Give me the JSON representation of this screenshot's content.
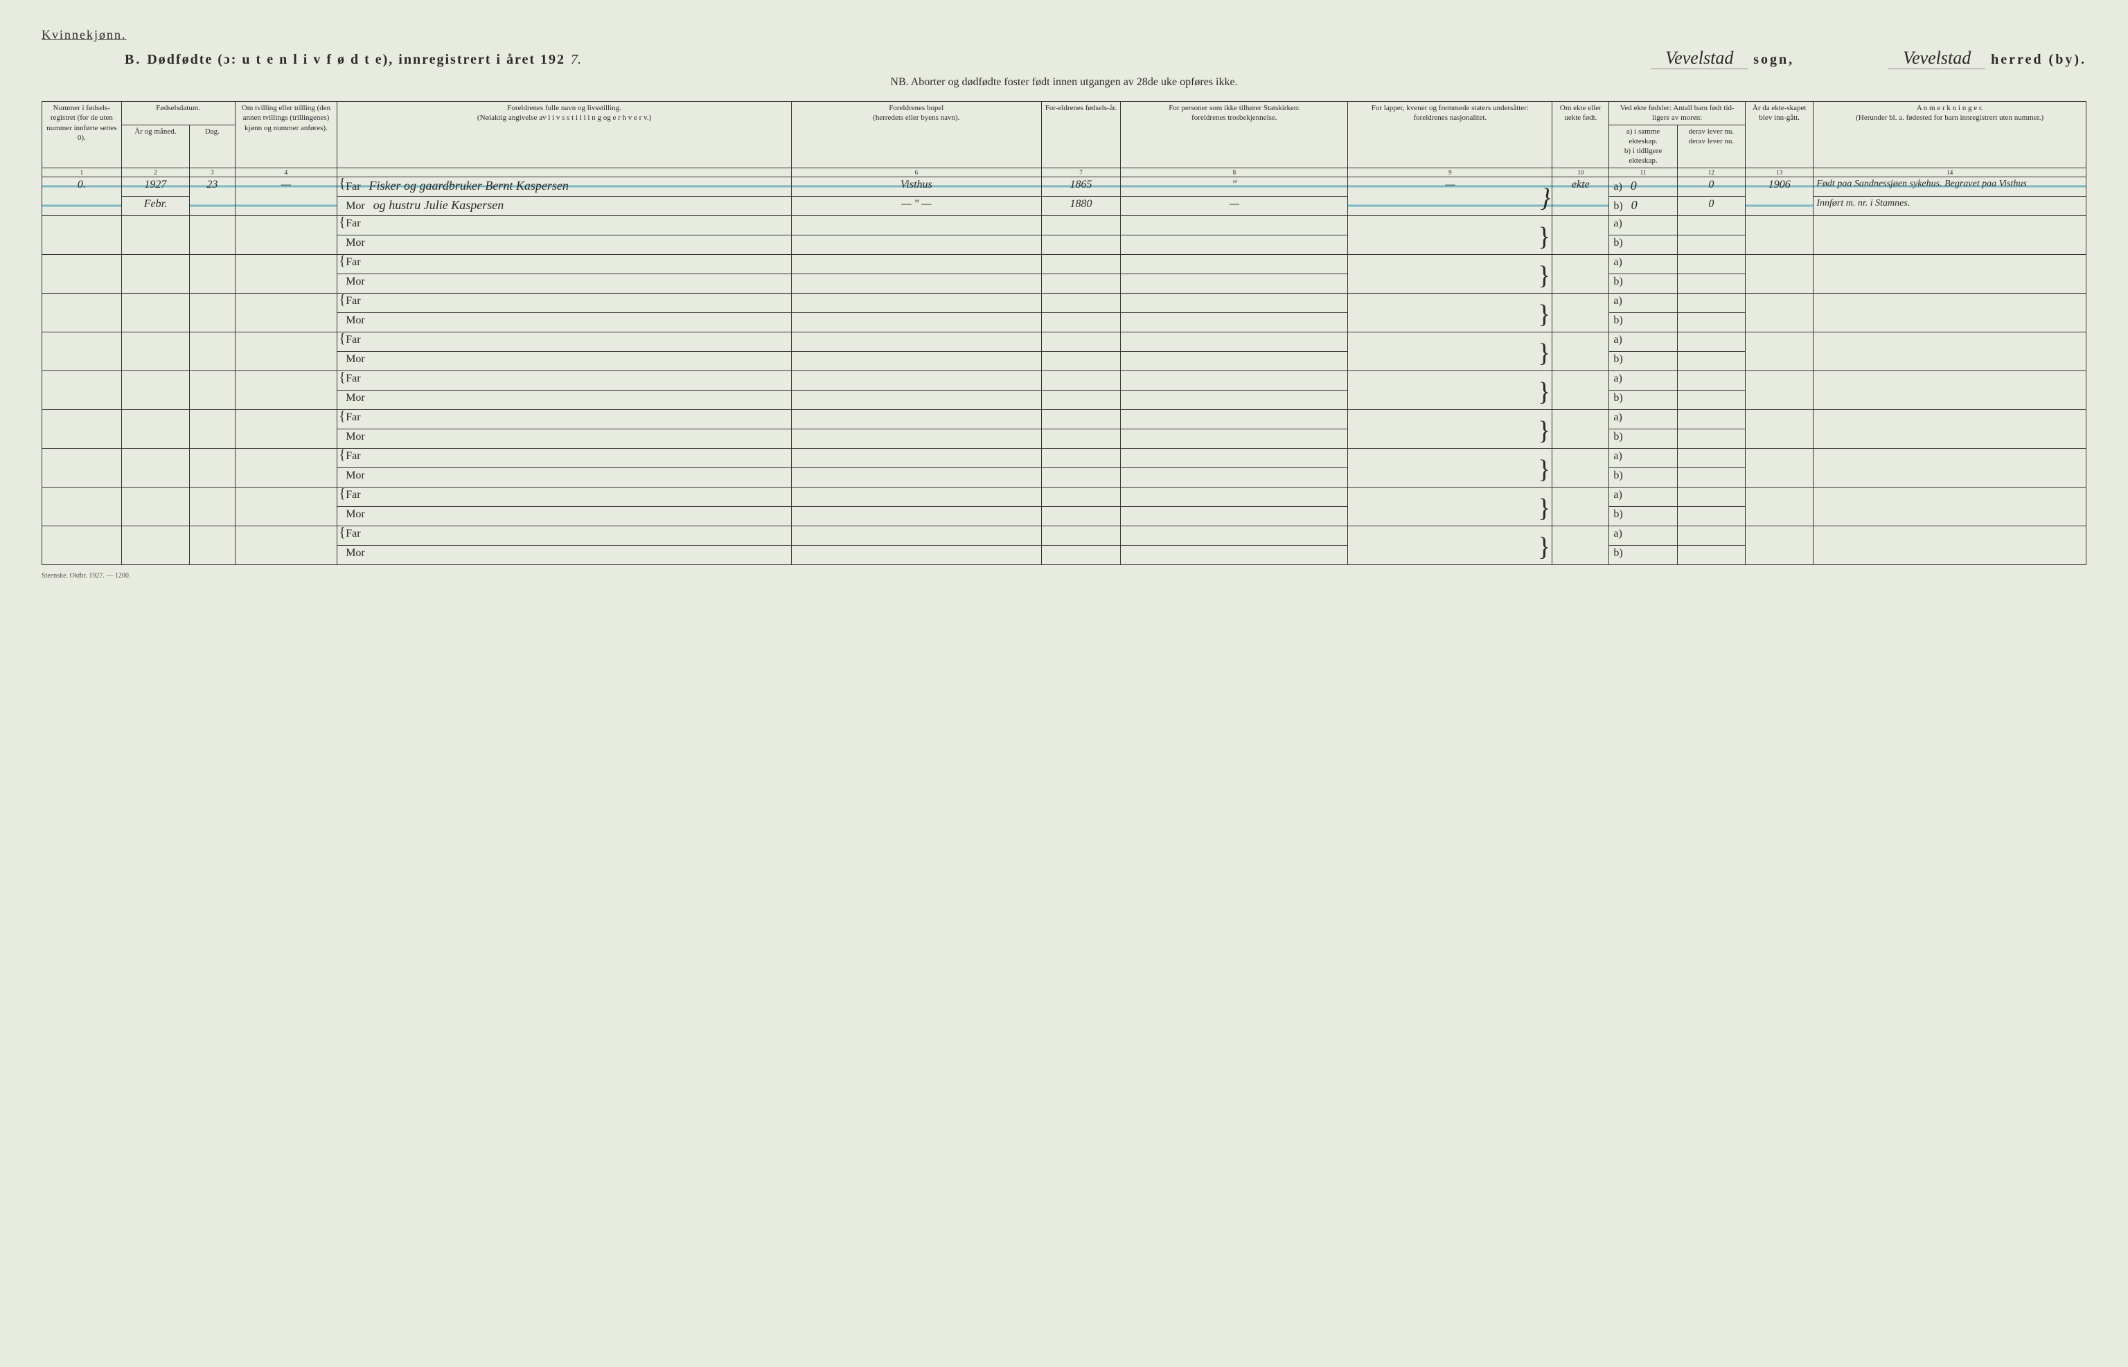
{
  "gender_label": "Kvinnekjønn.",
  "header": {
    "prefix": "B.",
    "title_spaced": "Dødfødte (ɔ: u t e n  l i v f ø d t e), innregistrert i året 192",
    "year_suffix": "7.",
    "sogn_value": "Vevelstad",
    "sogn_label": "sogn,",
    "herred_value": "Vevelstad",
    "herred_label": "herred (by)."
  },
  "nb_line": "NB.  Aborter og dødfødte foster født innen utgangen av 28de uke opføres ikke.",
  "columns": {
    "c1": "Nummer i fødsels-registret (for de uten nummer innførte settes 0).",
    "c2_top": "Fødselsdatum.",
    "c2a": "År og måned.",
    "c2b": "Dag.",
    "c4": "Om tvilling eller trilling (den annen tvillings (trillingenes) kjønn og nummer anføres).",
    "c5_top": "Foreldrenes fulle navn og livsstilling.",
    "c5_sub": "(Nøiaktig angivelse av l i v s s t i l l i n g og e r h v e r v.)",
    "c6_top": "Foreldrenes bopel",
    "c6_sub": "(herredets eller byens navn).",
    "c7": "For-eldrenes fødsels-år.",
    "c8_top": "For personer som ikke tilhører Statskirken:",
    "c8_sub": "foreldrenes trosbekjennelse.",
    "c9_top": "For lapper, kvener og fremmede staters undersåtter:",
    "c9_sub": "foreldrenes nasjonalitet.",
    "c10": "Om ekte eller uekte født.",
    "c11_top": "Ved ekte fødsler: Antall barn født tid-ligere av moren:",
    "c11a": "a) i samme ekteskap.",
    "c11b": "b) i tidligere ekteskap.",
    "c12a": "derav lever nu.",
    "c12b": "derav lever nu.",
    "c13": "År da ekte-skapet blev inn-gått.",
    "c14_top": "A n m e r k n i n g e r.",
    "c14_sub": "(Herunder bl. a. fødested for barn innregistrert uten nummer.)"
  },
  "colnums": [
    "1",
    "2",
    "3",
    "4",
    "5",
    "6",
    "7",
    "8",
    "9",
    "10",
    "11",
    "12",
    "13",
    "14"
  ],
  "far_label": "Far",
  "mor_label": "Mor",
  "ab_a": "a)",
  "ab_b": "b)",
  "entries": [
    {
      "num": "0.",
      "year_month_top": "1927",
      "year_month_bot": "Febr.",
      "day": "23",
      "twin": "—",
      "far_name": "Fisker og gaardbruker Bernt Kaspersen",
      "mor_name": "og hustru Julie Kaspersen",
      "bopel_far": "Visthus",
      "bopel_mor": "— \" —",
      "far_year": "1865",
      "mor_year": "1880",
      "tros_far": "\"",
      "tros_mor": "—",
      "nasj_far": "—",
      "nasj_mor": "—",
      "ekte": "ekte",
      "a_val": "0",
      "a_lever": "0",
      "b_val": "0",
      "b_lever": "0",
      "year_marriage": "1906",
      "anm_top": "Født paa Sandnessjøen sykehus. Begravet paa Visthus",
      "anm_bot": "Innført m. nr. i Stamnes."
    }
  ],
  "footer": "Steenske.  Oktbr. 1927. — 1200.",
  "styling": {
    "page_bg": "#e8ebe0",
    "text_color": "#2a2a2a",
    "border_color": "#333333",
    "strike_color": "#7ab8c4",
    "header_fontsize": 20,
    "body_fontsize": 11,
    "script_fontsize": 26
  }
}
